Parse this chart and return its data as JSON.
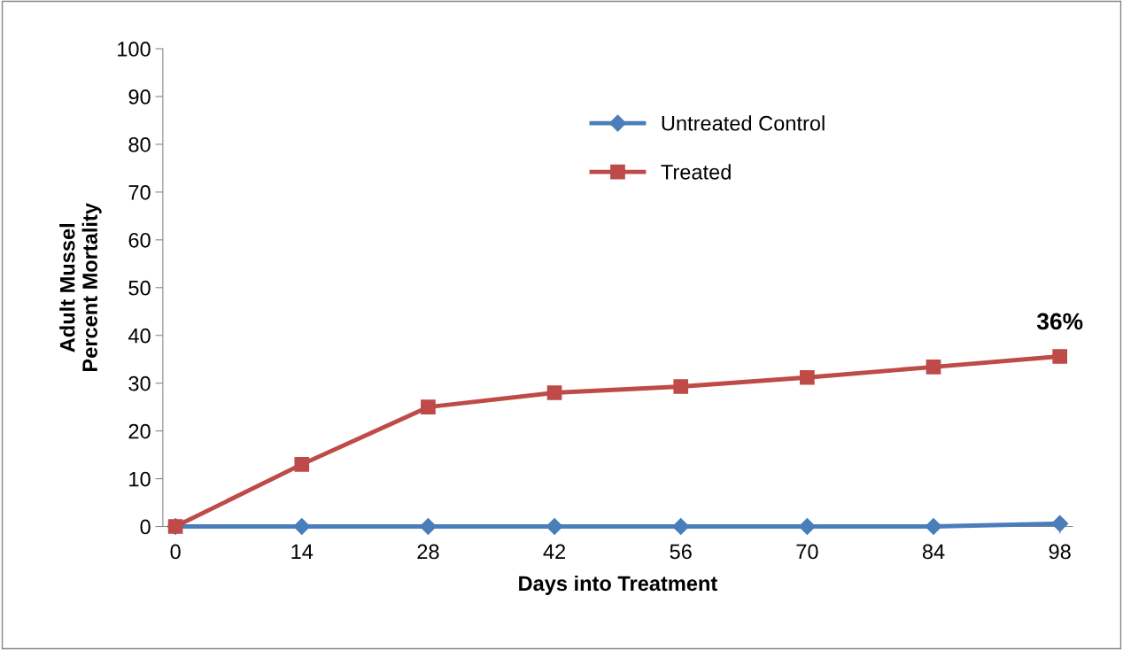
{
  "chart_data": {
    "type": "line",
    "xlabel": "Days into Treatment",
    "ylabel": "Adult Mussel\nPercent Mortality",
    "categories": [
      "0",
      "14",
      "28",
      "42",
      "56",
      "70",
      "84",
      "98"
    ],
    "series": [
      {
        "name": "Untreated Control",
        "color": "#4a7ebb",
        "marker": "diamond",
        "values": [
          0,
          0,
          0,
          0,
          0,
          0,
          0,
          0.6
        ]
      },
      {
        "name": "Treated",
        "color": "#be4b48",
        "marker": "square",
        "values": [
          0,
          13,
          25,
          28,
          29.3,
          31.2,
          33.4,
          35.6
        ]
      }
    ],
    "ylim": [
      0,
      100
    ],
    "yticks": [
      0,
      10,
      20,
      30,
      40,
      50,
      60,
      70,
      80,
      90,
      100
    ],
    "annotations": [
      {
        "text": "36%",
        "x": "98",
        "y": 35.6
      }
    ],
    "legend": "top",
    "grid": false,
    "line_style": "solid"
  }
}
